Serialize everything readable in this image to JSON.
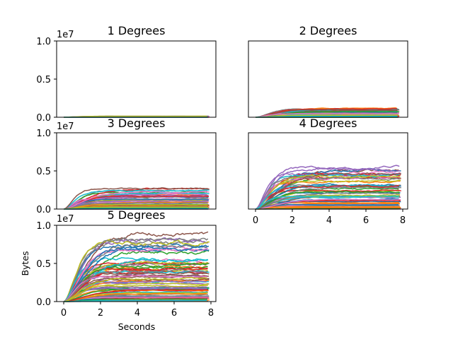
{
  "chart_data": {
    "type": "line",
    "subplots": [
      {
        "title": "1 Degrees",
        "x_range": [
          0,
          7.9
        ],
        "ylim": [
          0,
          10000000
        ],
        "y_ticks": [
          "0.0",
          "0.5",
          "1.0"
        ],
        "y_ticks_values": [
          0,
          5000000,
          10000000
        ],
        "offset_text": "1e7",
        "x_ticks_visible": false,
        "y_ticks_visible": true,
        "series_count": 20,
        "envelope_max_bytes": 150000
      },
      {
        "title": "2 Degrees",
        "x_range": [
          0,
          7.8
        ],
        "ylim": [
          0,
          10000000
        ],
        "x_ticks_visible": false,
        "y_ticks_visible": false,
        "series_count": 40,
        "envelope_max_bytes": 1200000
      },
      {
        "title": "3 Degrees",
        "x_range": [
          0,
          7.9
        ],
        "ylim": [
          0,
          10000000
        ],
        "y_ticks": [
          "0.0",
          "0.5",
          "1.0"
        ],
        "y_ticks_values": [
          0,
          5000000,
          10000000
        ],
        "offset_text": "1e7",
        "x_ticks_visible": false,
        "y_ticks_visible": true,
        "series_count": 50,
        "envelope_max_bytes": 2800000
      },
      {
        "title": "4 Degrees",
        "x_range": [
          0,
          7.9
        ],
        "ylim": [
          0,
          10000000
        ],
        "x_ticks": [
          "0",
          "2",
          "4",
          "6",
          "8"
        ],
        "x_ticks_values": [
          0,
          2,
          4,
          6,
          8
        ],
        "x_ticks_visible": true,
        "y_ticks_visible": false,
        "series_count": 60,
        "envelope_max_bytes": 5600000
      },
      {
        "title": "5 Degrees",
        "x_range": [
          0,
          7.9
        ],
        "ylim": [
          0,
          10000000
        ],
        "x_ticks": [
          "0",
          "2",
          "4",
          "6",
          "8"
        ],
        "x_ticks_values": [
          0,
          2,
          4,
          6,
          8
        ],
        "y_ticks": [
          "0.0",
          "0.5",
          "1.0"
        ],
        "y_ticks_values": [
          0,
          5000000,
          10000000
        ],
        "offset_text": "1e7",
        "x_ticks_visible": true,
        "y_ticks_visible": true,
        "xlabel": "Seconds",
        "ylabel": "Bytes",
        "series_count": 70,
        "envelope_max_bytes": 9600000
      }
    ],
    "series_colors": [
      "#1f77b4",
      "#ff7f0e",
      "#2ca02c",
      "#d62728",
      "#9467bd",
      "#8c564b",
      "#e377c2",
      "#7f7f7f",
      "#bcbd22",
      "#17becf"
    ],
    "grid": false,
    "legend": "none"
  }
}
